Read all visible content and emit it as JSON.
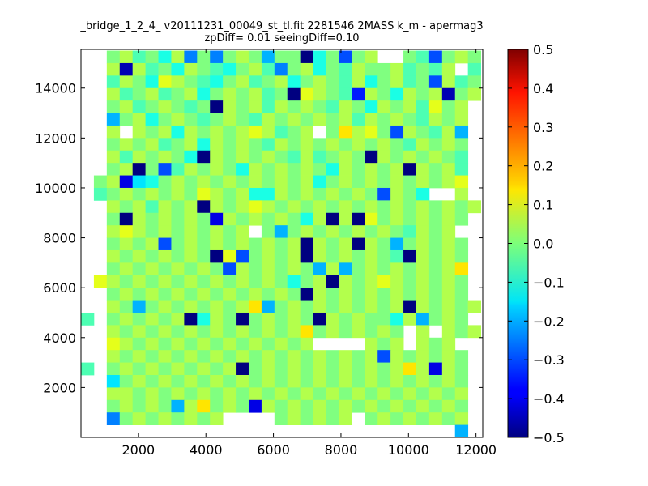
{
  "chart_data": {
    "type": "heatmap",
    "title": "_bridge_1_2_4_ v20111231_00049_st_tl.fit 2281546 2MASS k_m - apermag3",
    "subtitle": "zpDiff= 0.01 seeingDiff=0.10",
    "xlabel": "",
    "ylabel": "",
    "xlim": [
      300,
      12200
    ],
    "ylim": [
      0,
      15550
    ],
    "x_ticks": [
      "2000",
      "4000",
      "6000",
      "8000",
      "10000",
      "12000"
    ],
    "y_ticks": [
      "2000",
      "4000",
      "6000",
      "8000",
      "10000",
      "12000",
      "14000"
    ],
    "x_tick_values": [
      2000,
      4000,
      6000,
      8000,
      10000,
      12000
    ],
    "y_tick_values": [
      2000,
      4000,
      6000,
      8000,
      10000,
      12000,
      14000
    ],
    "colorbar": {
      "colormap": "jet",
      "vmin": -0.5,
      "vmax": 0.5,
      "ticks": [
        "0.5",
        "0.4",
        "0.3",
        "0.2",
        "0.1",
        "0.0",
        "−0.1",
        "−0.2",
        "−0.3",
        "−0.4",
        "−0.5"
      ],
      "tick_values": [
        0.5,
        0.4,
        0.3,
        0.2,
        0.1,
        0.0,
        -0.1,
        -0.2,
        -0.3,
        -0.4,
        -0.5
      ]
    },
    "grid": {
      "x0": 300,
      "y0": 0,
      "cell_width": 382,
      "cell_height": 500,
      "columns": 31,
      "rows": 31,
      "row_order": "top-to-bottom",
      "values": [
        [
          null,
          null,
          0.0,
          0.05,
          -0.05,
          0.0,
          -0.1,
          0.05,
          -0.25,
          0.0,
          -0.25,
          0.0,
          0.05,
          0.0,
          -0.2,
          0.0,
          0.0,
          -0.5,
          -0.1,
          0.0,
          -0.3,
          0.0,
          0.05,
          null,
          null,
          0.0,
          -0.05,
          -0.3,
          0.0,
          0.05,
          0.0
        ],
        [
          null,
          null,
          0.05,
          -0.45,
          0.05,
          -0.05,
          0.0,
          -0.1,
          0.05,
          0.0,
          -0.05,
          -0.1,
          0.0,
          0.05,
          -0.05,
          -0.25,
          0.0,
          0.05,
          -0.1,
          0.0,
          -0.05,
          0.05,
          0.0,
          0.0,
          0.05,
          -0.05,
          0.0,
          -0.05,
          0.05,
          null,
          -0.05
        ],
        [
          null,
          null,
          -0.05,
          0.05,
          0.0,
          -0.1,
          0.1,
          0.05,
          0.0,
          -0.05,
          -0.1,
          0.0,
          0.05,
          -0.05,
          0.0,
          0.05,
          -0.1,
          0.0,
          0.05,
          0.0,
          -0.05,
          0.05,
          -0.1,
          0.0,
          0.05,
          -0.05,
          0.0,
          -0.3,
          0.05,
          -0.05,
          0.0
        ],
        [
          null,
          null,
          0.05,
          -0.05,
          0.0,
          0.05,
          -0.05,
          0.0,
          0.05,
          -0.1,
          0.0,
          0.05,
          0.0,
          0.05,
          -0.05,
          0.0,
          -0.5,
          0.1,
          0.05,
          0.0,
          -0.05,
          -0.35,
          0.05,
          0.0,
          -0.1,
          0.05,
          0.0,
          0.05,
          -0.45,
          0.0,
          0.05
        ],
        [
          null,
          null,
          0.0,
          0.05,
          -0.05,
          0.0,
          0.05,
          0.0,
          -0.05,
          0.0,
          -0.5,
          0.05,
          0.0,
          0.05,
          -0.05,
          0.05,
          0.0,
          0.05,
          0.0,
          -0.05,
          0.05,
          0.0,
          -0.1,
          0.05,
          0.0,
          0.05,
          -0.05,
          0.1,
          0.0,
          0.05,
          null
        ],
        [
          null,
          null,
          -0.2,
          0.0,
          0.05,
          -0.1,
          0.0,
          0.05,
          0.0,
          -0.05,
          0.0,
          0.05,
          0.0,
          -0.05,
          0.05,
          0.0,
          0.05,
          0.0,
          0.05,
          0.0,
          0.05,
          -0.05,
          0.05,
          0.0,
          0.05,
          0.0,
          -0.05,
          0.05,
          0.0,
          0.05,
          null
        ],
        [
          null,
          null,
          0.05,
          null,
          0.05,
          0.0,
          0.05,
          -0.1,
          0.05,
          0.0,
          0.05,
          0.0,
          0.05,
          0.1,
          0.05,
          -0.05,
          0.0,
          0.05,
          null,
          0.0,
          0.15,
          0.05,
          0.1,
          0.0,
          -0.3,
          0.05,
          0.0,
          -0.05,
          0.05,
          -0.2,
          null
        ],
        [
          null,
          null,
          0.0,
          0.05,
          0.0,
          0.05,
          -0.05,
          0.0,
          0.05,
          -0.1,
          0.05,
          0.0,
          0.05,
          0.0,
          -0.05,
          0.05,
          0.0,
          0.05,
          0.0,
          0.05,
          0.0,
          0.05,
          0.0,
          0.05,
          0.0,
          -0.05,
          0.05,
          0.0,
          0.05,
          0.0,
          null
        ],
        [
          null,
          null,
          0.05,
          -0.05,
          0.05,
          0.0,
          0.05,
          0.0,
          -0.1,
          -0.5,
          0.05,
          0.0,
          0.05,
          0.0,
          0.05,
          0.0,
          -0.05,
          0.05,
          -0.05,
          0.0,
          0.05,
          0.0,
          -0.5,
          0.05,
          0.0,
          0.05,
          0.0,
          0.05,
          0.0,
          -0.05,
          null
        ],
        [
          null,
          null,
          0.0,
          0.05,
          -0.5,
          0.0,
          -0.3,
          -0.05,
          0.05,
          0.0,
          0.05,
          0.0,
          -0.1,
          0.05,
          0.0,
          0.05,
          0.0,
          0.05,
          0.0,
          -0.1,
          0.05,
          0.0,
          0.05,
          0.0,
          0.05,
          -0.5,
          0.05,
          0.0,
          0.05,
          -0.05,
          null
        ],
        [
          null,
          0.0,
          0.05,
          -0.4,
          -0.15,
          -0.1,
          0.0,
          0.05,
          0.0,
          0.05,
          0.0,
          0.05,
          0.0,
          0.05,
          0.0,
          0.05,
          0.0,
          0.05,
          -0.1,
          0.0,
          0.05,
          0.0,
          0.05,
          0.0,
          0.05,
          0.0,
          0.05,
          0.0,
          0.05,
          0.1,
          null
        ],
        [
          null,
          -0.05,
          0.0,
          0.05,
          0.0,
          0.05,
          0.0,
          0.05,
          0.0,
          0.1,
          0.05,
          0.0,
          0.05,
          -0.1,
          -0.1,
          0.05,
          0.0,
          0.05,
          0.0,
          0.05,
          0.0,
          0.05,
          0.0,
          -0.3,
          0.05,
          0.0,
          -0.1,
          null,
          null,
          0.05,
          null
        ],
        [
          null,
          null,
          0.05,
          0.0,
          0.05,
          -0.05,
          0.05,
          0.0,
          0.05,
          -0.5,
          0.05,
          0.0,
          0.05,
          0.1,
          0.05,
          0.0,
          0.05,
          0.0,
          0.05,
          0.0,
          0.05,
          0.0,
          0.05,
          0.0,
          0.05,
          0.0,
          0.05,
          0.0,
          0.05,
          0.0,
          0.05
        ],
        [
          null,
          null,
          0.0,
          -0.5,
          0.05,
          0.0,
          0.05,
          0.0,
          0.05,
          0.0,
          -0.4,
          0.05,
          0.0,
          0.05,
          0.0,
          0.05,
          0.0,
          -0.1,
          0.05,
          -0.5,
          0.05,
          -0.5,
          0.1,
          0.0,
          0.05,
          0.0,
          0.05,
          0.0,
          0.05,
          0.0,
          null
        ],
        [
          null,
          null,
          0.05,
          0.1,
          0.05,
          0.0,
          0.05,
          0.0,
          0.05,
          0.0,
          0.05,
          0.0,
          0.05,
          null,
          0.0,
          -0.2,
          0.0,
          0.05,
          0.0,
          0.05,
          0.0,
          0.05,
          0.0,
          0.05,
          0.0,
          -0.05,
          0.05,
          0.0,
          0.05,
          null,
          null
        ],
        [
          null,
          null,
          0.0,
          0.05,
          0.0,
          0.05,
          -0.3,
          0.0,
          0.05,
          0.0,
          0.05,
          0.0,
          0.05,
          0.0,
          0.05,
          0.0,
          0.05,
          -0.5,
          0.05,
          0.0,
          0.05,
          -0.5,
          0.05,
          0.0,
          -0.2,
          0.0,
          0.05,
          0.0,
          0.05,
          0.0,
          null
        ],
        [
          null,
          null,
          0.05,
          0.0,
          0.05,
          0.0,
          0.05,
          0.0,
          0.05,
          0.0,
          -0.5,
          0.1,
          -0.3,
          0.0,
          0.05,
          0.0,
          0.05,
          -0.5,
          0.05,
          0.0,
          0.05,
          0.0,
          0.05,
          0.0,
          -0.05,
          -0.5,
          0.05,
          0.0,
          0.05,
          0.0,
          null
        ],
        [
          null,
          null,
          0.0,
          0.05,
          0.0,
          0.05,
          0.0,
          0.05,
          0.0,
          0.05,
          0.0,
          -0.3,
          0.05,
          0.0,
          0.05,
          0.0,
          0.05,
          0.0,
          -0.2,
          0.05,
          -0.2,
          0.0,
          0.05,
          0.0,
          0.05,
          0.0,
          0.05,
          0.0,
          0.05,
          0.15,
          null
        ],
        [
          null,
          0.1,
          0.05,
          0.0,
          0.05,
          0.0,
          0.05,
          0.0,
          0.05,
          0.0,
          0.05,
          0.0,
          0.05,
          0.0,
          0.05,
          0.0,
          -0.1,
          0.0,
          0.05,
          -0.5,
          0.05,
          0.0,
          0.05,
          0.1,
          0.05,
          0.0,
          0.05,
          0.0,
          0.05,
          0.0,
          null
        ],
        [
          null,
          null,
          0.0,
          0.05,
          0.0,
          0.05,
          0.0,
          0.05,
          0.0,
          0.05,
          0.0,
          0.05,
          0.0,
          0.05,
          0.0,
          0.05,
          0.0,
          -0.5,
          0.05,
          0.0,
          0.05,
          0.0,
          0.05,
          0.0,
          0.05,
          0.0,
          0.05,
          0.0,
          0.05,
          0.0,
          null
        ],
        [
          null,
          null,
          0.05,
          0.0,
          -0.2,
          0.0,
          0.05,
          0.0,
          0.05,
          0.0,
          0.05,
          0.0,
          0.05,
          0.15,
          -0.2,
          0.0,
          0.05,
          0.0,
          0.05,
          0.0,
          0.05,
          0.0,
          0.05,
          0.0,
          0.05,
          -0.5,
          0.05,
          0.0,
          0.05,
          0.0,
          0.05
        ],
        [
          -0.05,
          null,
          0.0,
          0.05,
          0.0,
          0.05,
          0.0,
          0.05,
          -0.5,
          -0.1,
          0.05,
          0.0,
          -0.5,
          0.0,
          0.05,
          0.0,
          0.05,
          0.0,
          -0.5,
          0.05,
          0.0,
          0.05,
          0.0,
          0.0,
          -0.1,
          0.05,
          -0.2,
          0.0,
          0.05,
          0.0,
          null
        ],
        [
          null,
          null,
          0.05,
          0.0,
          0.05,
          0.0,
          0.05,
          0.0,
          0.05,
          0.0,
          0.05,
          0.0,
          0.05,
          0.0,
          0.05,
          0.0,
          0.05,
          0.15,
          0.0,
          0.05,
          0.0,
          0.05,
          0.0,
          0.05,
          0.0,
          null,
          0.05,
          null,
          0.05,
          0.0,
          0.05
        ],
        [
          null,
          null,
          0.1,
          0.05,
          0.0,
          0.05,
          0.0,
          0.05,
          0.0,
          0.05,
          0.0,
          0.05,
          0.0,
          0.05,
          0.0,
          0.05,
          0.0,
          0.05,
          null,
          null,
          null,
          null,
          0.05,
          0.0,
          0.05,
          null,
          0.05,
          0.0,
          0.05,
          null,
          null
        ],
        [
          null,
          null,
          0.05,
          0.0,
          0.05,
          0.0,
          0.05,
          0.0,
          0.05,
          0.0,
          0.05,
          0.0,
          0.05,
          0.0,
          0.05,
          0.0,
          0.05,
          0.0,
          0.05,
          0.0,
          0.05,
          0.0,
          0.05,
          -0.3,
          0.05,
          0.0,
          0.05,
          0.0,
          0.05,
          0.0,
          null
        ],
        [
          -0.05,
          null,
          0.0,
          0.05,
          0.0,
          0.05,
          0.0,
          0.05,
          0.0,
          0.05,
          0.0,
          0.05,
          -0.5,
          0.0,
          0.05,
          0.0,
          0.05,
          0.0,
          0.05,
          0.0,
          0.05,
          0.0,
          0.05,
          0.0,
          0.05,
          0.15,
          0.05,
          -0.4,
          0.05,
          0.0,
          null
        ],
        [
          null,
          null,
          -0.15,
          0.0,
          0.05,
          0.0,
          0.05,
          0.0,
          0.05,
          0.0,
          0.05,
          0.0,
          0.05,
          0.0,
          0.05,
          0.0,
          0.05,
          0.0,
          0.05,
          0.0,
          0.05,
          0.0,
          0.05,
          0.0,
          0.05,
          0.0,
          0.05,
          0.0,
          0.05,
          0.0,
          null
        ],
        [
          null,
          null,
          0.05,
          0.05,
          0.0,
          0.05,
          0.0,
          0.05,
          0.0,
          0.05,
          0.0,
          0.05,
          0.0,
          0.05,
          0.0,
          0.05,
          0.0,
          0.05,
          0.0,
          0.05,
          0.0,
          0.05,
          0.0,
          0.05,
          0.0,
          0.05,
          0.0,
          0.05,
          0.0,
          0.05,
          null
        ],
        [
          null,
          null,
          0.0,
          0.05,
          0.0,
          0.05,
          0.0,
          -0.2,
          0.05,
          0.15,
          0.0,
          0.05,
          0.0,
          -0.4,
          0.05,
          0.0,
          0.05,
          0.0,
          0.05,
          0.0,
          0.05,
          0.0,
          0.05,
          0.0,
          0.05,
          0.0,
          0.05,
          0.0,
          0.05,
          0.0,
          null
        ],
        [
          null,
          null,
          -0.25,
          0.0,
          0.05,
          0.0,
          0.05,
          0.0,
          0.05,
          0.0,
          0.05,
          null,
          null,
          null,
          null,
          0.0,
          0.05,
          0.0,
          0.05,
          0.0,
          0.05,
          null,
          0.0,
          0.05,
          0.0,
          0.05,
          0.0,
          0.05,
          0.0,
          0.05,
          null
        ],
        [
          null,
          null,
          null,
          null,
          null,
          null,
          null,
          null,
          null,
          null,
          null,
          null,
          null,
          null,
          null,
          null,
          null,
          null,
          null,
          null,
          null,
          null,
          null,
          null,
          null,
          null,
          null,
          null,
          null,
          -0.2,
          null
        ]
      ]
    }
  }
}
